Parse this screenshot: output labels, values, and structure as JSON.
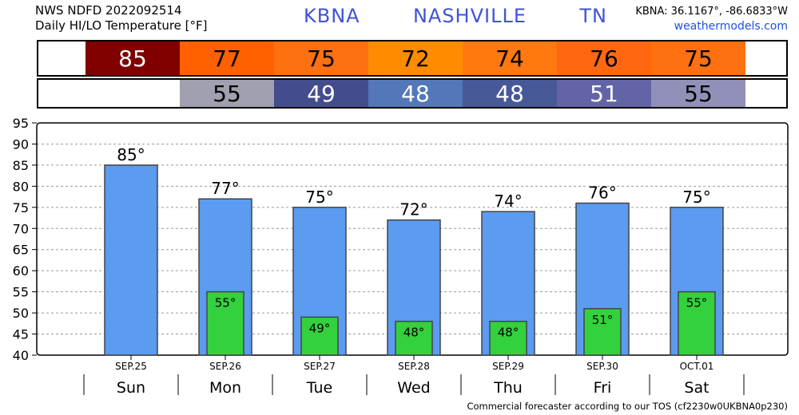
{
  "header": {
    "line1": "NWS NDFD 2022092514",
    "line2": "Daily HI/LO Temperature [°F]",
    "station": "KBNA",
    "city": "NASHVILLE",
    "state": "TN",
    "coords": "KBNA: 36.1167°, -86.6833°W",
    "site": "weathermodels.com"
  },
  "strips": {
    "hi": [
      {
        "text": "",
        "bg": "#ffffff",
        "fg": "#000000"
      },
      {
        "text": "85",
        "bg": "#800000",
        "fg": "#ffffff"
      },
      {
        "text": "77",
        "bg": "#ff6000",
        "fg": "#000000"
      },
      {
        "text": "75",
        "bg": "#ff7010",
        "fg": "#000000"
      },
      {
        "text": "72",
        "bg": "#ff8c00",
        "fg": "#000000"
      },
      {
        "text": "74",
        "bg": "#ff7810",
        "fg": "#000000"
      },
      {
        "text": "76",
        "bg": "#ff6810",
        "fg": "#000000"
      },
      {
        "text": "75",
        "bg": "#ff7010",
        "fg": "#000000"
      },
      {
        "text": "",
        "bg": "#ffffff",
        "fg": "#000000"
      }
    ],
    "lo": [
      {
        "text": "",
        "bg": "#ffffff",
        "fg": "#000000"
      },
      {
        "text": "",
        "bg": "#ffffff",
        "fg": "#000000"
      },
      {
        "text": "55",
        "bg": "#a0a0b0",
        "fg": "#000000"
      },
      {
        "text": "49",
        "bg": "#434c8c",
        "fg": "#ffffff"
      },
      {
        "text": "48",
        "bg": "#5377b8",
        "fg": "#ffffff"
      },
      {
        "text": "48",
        "bg": "#475898",
        "fg": "#ffffff"
      },
      {
        "text": "51",
        "bg": "#6364a8",
        "fg": "#ffffff"
      },
      {
        "text": "55",
        "bg": "#9090b8",
        "fg": "#000000"
      },
      {
        "text": "",
        "bg": "#ffffff",
        "fg": "#000000"
      }
    ]
  },
  "chart_data": {
    "type": "bar",
    "categories": [
      "Sun",
      "Mon",
      "Tue",
      "Wed",
      "Thu",
      "Fri",
      "Sat"
    ],
    "dates": [
      "SEP.25",
      "SEP.26",
      "SEP.27",
      "SEP.28",
      "SEP.29",
      "SEP.30",
      "OCT.01"
    ],
    "series": [
      {
        "values": [
          85,
          77,
          75,
          72,
          74,
          76,
          75
        ],
        "color": "#5b9bf0"
      },
      {
        "values": [
          null,
          55,
          49,
          48,
          48,
          51,
          55
        ],
        "color": "#33d13d"
      }
    ],
    "hi_labels": [
      "85°",
      "77°",
      "75°",
      "72°",
      "74°",
      "76°",
      "75°"
    ],
    "lo_labels": [
      "",
      "55°",
      "49°",
      "48°",
      "48°",
      "51°",
      "55°"
    ],
    "ylim": [
      40,
      95
    ],
    "yticks": [
      40,
      45,
      50,
      55,
      60,
      65,
      70,
      75,
      80,
      85,
      90,
      95
    ],
    "grid": true
  },
  "footer": "Commercial forecaster according to our TOS (cf2230w0UKBNA0p230)"
}
